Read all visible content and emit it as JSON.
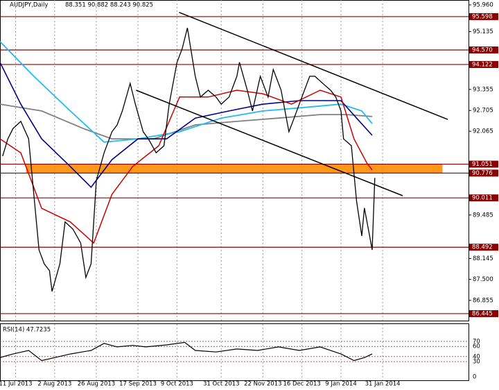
{
  "chart_data": {
    "type": "price-line",
    "symbol": "AUDJPY,Daily",
    "quote": "88.351 90.882 88.243 90.825",
    "xlim": [
      0,
      180
    ],
    "ylim": [
      86.23,
      96.11
    ],
    "xticks": [
      {
        "value": 6,
        "label": "11 Jul 2013"
      },
      {
        "value": 21,
        "label": "2 Aug 2013"
      },
      {
        "value": 37,
        "label": "26 Aug 2013"
      },
      {
        "value": 53,
        "label": "17 Sep 2013"
      },
      {
        "value": 68,
        "label": "9 Oct 2013"
      },
      {
        "value": 85,
        "label": "31 Oct 2013"
      },
      {
        "value": 101,
        "label": "22 Nov 2013"
      },
      {
        "value": 116,
        "label": "16 Dec 2013"
      },
      {
        "value": 131,
        "label": "9 Jan 2014"
      },
      {
        "value": 147,
        "label": "31 Jan 2014"
      }
    ],
    "yticks": [
      {
        "value": 95.96,
        "label": "95.960"
      },
      95.135,
      93.355,
      92.705,
      92.065,
      89.485,
      88.145,
      {
        "value": 87.5,
        "label": "87.500"
      },
      86.855
    ],
    "levels": [
      95.598,
      {
        "value": 94.57,
        "label": "94.570"
      },
      94.122,
      91.051,
      90.776,
      90.011,
      88.492,
      86.445
    ],
    "level_color": "#8b0000",
    "zone": {
      "from": 90.776,
      "to": 91.051,
      "x": [
        10,
        170
      ],
      "color": "#ff8c00"
    },
    "grid": true,
    "series": [
      {
        "name": "AUDJPY",
        "color": "#000000",
        "width": 1.3,
        "x": [
          1,
          3,
          5,
          8,
          11,
          13,
          15,
          17,
          19,
          20,
          23,
          25,
          28,
          31,
          33,
          35,
          37,
          40,
          43,
          45,
          47,
          50,
          52,
          55,
          57,
          60,
          63,
          65,
          68,
          70,
          72,
          75,
          77,
          80,
          83,
          85,
          88,
          91,
          92,
          95,
          97,
          100,
          103,
          105,
          108,
          111,
          113,
          116,
          119,
          121,
          124,
          127,
          129,
          131,
          132,
          135,
          137,
          139,
          140,
          142,
          143,
          144
        ],
        "values": [
          91.3,
          91.83,
          92.15,
          92.37,
          91.83,
          90.12,
          88.41,
          87.98,
          87.77,
          87.13,
          87.98,
          89.27,
          89.05,
          88.62,
          87.56,
          87.98,
          90.55,
          91.4,
          92.05,
          92.26,
          92.69,
          93.54,
          92.9,
          92.05,
          91.83,
          91.4,
          91.62,
          92.9,
          94.19,
          94.61,
          95.25,
          93.76,
          93.12,
          93.33,
          93.12,
          92.9,
          93.12,
          93.76,
          94.19,
          93.33,
          92.69,
          93.76,
          93.12,
          93.97,
          93.33,
          92.05,
          92.47,
          93.12,
          93.76,
          93.76,
          93.54,
          93.33,
          93.12,
          92.69,
          91.83,
          91.62,
          89.91,
          88.84,
          89.7,
          88.84,
          88.41,
          90.63
        ]
      },
      {
        "name": "MA-red",
        "color": "#cc0000",
        "width": 1.5,
        "x": [
          0,
          8,
          16,
          27,
          36,
          43,
          51,
          61,
          69,
          80,
          91,
          101,
          112,
          123,
          131,
          136,
          141,
          143
        ],
        "values": [
          91.83,
          91.4,
          89.69,
          89.27,
          88.62,
          90.12,
          90.98,
          91.62,
          93.12,
          93.12,
          93.33,
          93.22,
          92.9,
          93.33,
          93.12,
          91.83,
          91.08,
          90.87
        ]
      },
      {
        "name": "MA-navy",
        "color": "#00008b",
        "width": 1.6,
        "x": [
          0,
          8,
          16,
          27,
          35,
          43,
          53,
          64,
          75,
          88,
          101,
          115,
          131,
          137,
          143
        ],
        "values": [
          94.19,
          92.9,
          91.83,
          90.98,
          90.34,
          91.19,
          91.83,
          91.83,
          92.47,
          92.69,
          92.9,
          93.01,
          93.01,
          92.47,
          91.94
        ]
      },
      {
        "name": "MA-cyan",
        "color": "#22bbee",
        "width": 1.8,
        "x": [
          0,
          13,
          27,
          40,
          53,
          69,
          85,
          101,
          117,
          131,
          139,
          143
        ],
        "values": [
          94.83,
          93.76,
          92.69,
          91.73,
          91.83,
          92.05,
          92.47,
          92.69,
          92.8,
          92.9,
          92.69,
          92.3
        ]
      },
      {
        "name": "MA-gray",
        "color": "#808080",
        "width": 1.8,
        "x": [
          0,
          16,
          32,
          43,
          59,
          75,
          91,
          107,
          123,
          133,
          143
        ],
        "values": [
          92.9,
          92.69,
          92.15,
          91.83,
          91.83,
          92.26,
          92.37,
          92.47,
          92.58,
          92.58,
          92.52
        ]
      }
    ],
    "trendlines": [
      {
        "x": [
          68.8,
          172
        ],
        "values": [
          95.73,
          92.43
        ]
      },
      {
        "x": [
          52.3,
          154.7
        ],
        "values": [
          93.33,
          90.08
        ]
      }
    ],
    "rsi": {
      "title": "RSI(14) 47.7235",
      "ylim": [
        0,
        100
      ],
      "yticks": [
        70,
        60,
        40,
        30,
        0
      ],
      "color": "#000000",
      "x": [
        0,
        5,
        11,
        16,
        21,
        27,
        35,
        40,
        45,
        51,
        56,
        64,
        71,
        75,
        83,
        91,
        99,
        107,
        115,
        123,
        131,
        136,
        140,
        143
      ],
      "values": [
        38,
        45,
        52,
        32,
        38,
        45,
        52,
        66,
        59,
        62,
        59,
        63,
        68,
        52,
        49,
        55,
        52,
        59,
        52,
        59,
        45,
        32,
        38,
        45
      ]
    }
  }
}
